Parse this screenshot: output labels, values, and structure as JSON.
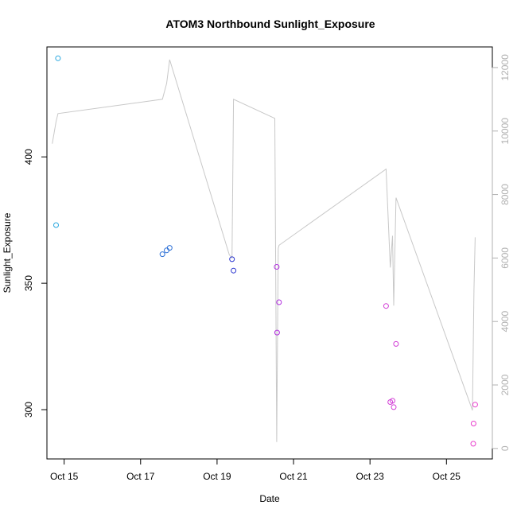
{
  "chart_data": {
    "type": "scatter",
    "title": "ATOM3 Northbound Sunlight_Exposure",
    "xlabel": "Date",
    "ylabel": "Sunlight_Exposure",
    "x_ticks": [
      {
        "label": "Oct 15",
        "value": 15
      },
      {
        "label": "Oct 17",
        "value": 17
      },
      {
        "label": "Oct 19",
        "value": 19
      },
      {
        "label": "Oct 21",
        "value": 21
      },
      {
        "label": "Oct 23",
        "value": 23
      },
      {
        "label": "Oct 25",
        "value": 25
      }
    ],
    "xlim": [
      14.55,
      26.2
    ],
    "ylim": [
      280.5,
      443.5
    ],
    "y_ticks": [
      300,
      350,
      400
    ],
    "y2lim": [
      -330,
      12650
    ],
    "y2_ticks": [
      0,
      2000,
      4000,
      6000,
      8000,
      10000,
      12000
    ],
    "line_color": "#c8c8c8",
    "points": [
      {
        "x": 14.84,
        "y": 439.0,
        "color": "#2aa8e0"
      },
      {
        "x": 14.79,
        "y": 373.0,
        "color": "#2aa8e0"
      },
      {
        "x": 17.57,
        "y": 361.5,
        "color": "#2b6fd6"
      },
      {
        "x": 17.68,
        "y": 363.0,
        "color": "#2b6fd6"
      },
      {
        "x": 17.76,
        "y": 364.0,
        "color": "#2b6fd6"
      },
      {
        "x": 19.39,
        "y": 359.5,
        "color": "#2a35d0"
      },
      {
        "x": 19.43,
        "y": 355.0,
        "color": "#2a35d0"
      },
      {
        "x": 20.56,
        "y": 356.5,
        "color": "#b230e0"
      },
      {
        "x": 20.62,
        "y": 342.5,
        "color": "#b230e0"
      },
      {
        "x": 20.57,
        "y": 330.5,
        "color": "#b230e0"
      },
      {
        "x": 23.42,
        "y": 341.0,
        "color": "#d23ed6"
      },
      {
        "x": 23.68,
        "y": 326.0,
        "color": "#d23ed6"
      },
      {
        "x": 23.53,
        "y": 303.0,
        "color": "#d23ed6"
      },
      {
        "x": 23.59,
        "y": 303.5,
        "color": "#d23ed6"
      },
      {
        "x": 23.62,
        "y": 301.0,
        "color": "#d23ed6"
      },
      {
        "x": 25.75,
        "y": 302.0,
        "color": "#e83ccc"
      },
      {
        "x": 25.71,
        "y": 294.5,
        "color": "#e83ccc"
      },
      {
        "x": 25.7,
        "y": 286.5,
        "color": "#e83ccc"
      }
    ],
    "secondary_line": [
      {
        "x": 14.69,
        "y": 9600
      },
      {
        "x": 14.79,
        "y": 10300
      },
      {
        "x": 14.84,
        "y": 10550
      },
      {
        "x": 17.57,
        "y": 11000
      },
      {
        "x": 17.68,
        "y": 11500
      },
      {
        "x": 17.76,
        "y": 12250
      },
      {
        "x": 19.32,
        "y": 6100
      },
      {
        "x": 19.39,
        "y": 6000
      },
      {
        "x": 19.43,
        "y": 11000
      },
      {
        "x": 20.51,
        "y": 10400
      },
      {
        "x": 20.56,
        "y": 200
      },
      {
        "x": 20.6,
        "y": 6300
      },
      {
        "x": 20.62,
        "y": 6400
      },
      {
        "x": 23.42,
        "y": 8800
      },
      {
        "x": 23.53,
        "y": 5700
      },
      {
        "x": 23.59,
        "y": 6700
      },
      {
        "x": 23.62,
        "y": 4500
      },
      {
        "x": 23.68,
        "y": 7900
      },
      {
        "x": 25.68,
        "y": 1200
      },
      {
        "x": 25.72,
        "y": 5000
      },
      {
        "x": 25.75,
        "y": 6650
      }
    ]
  }
}
